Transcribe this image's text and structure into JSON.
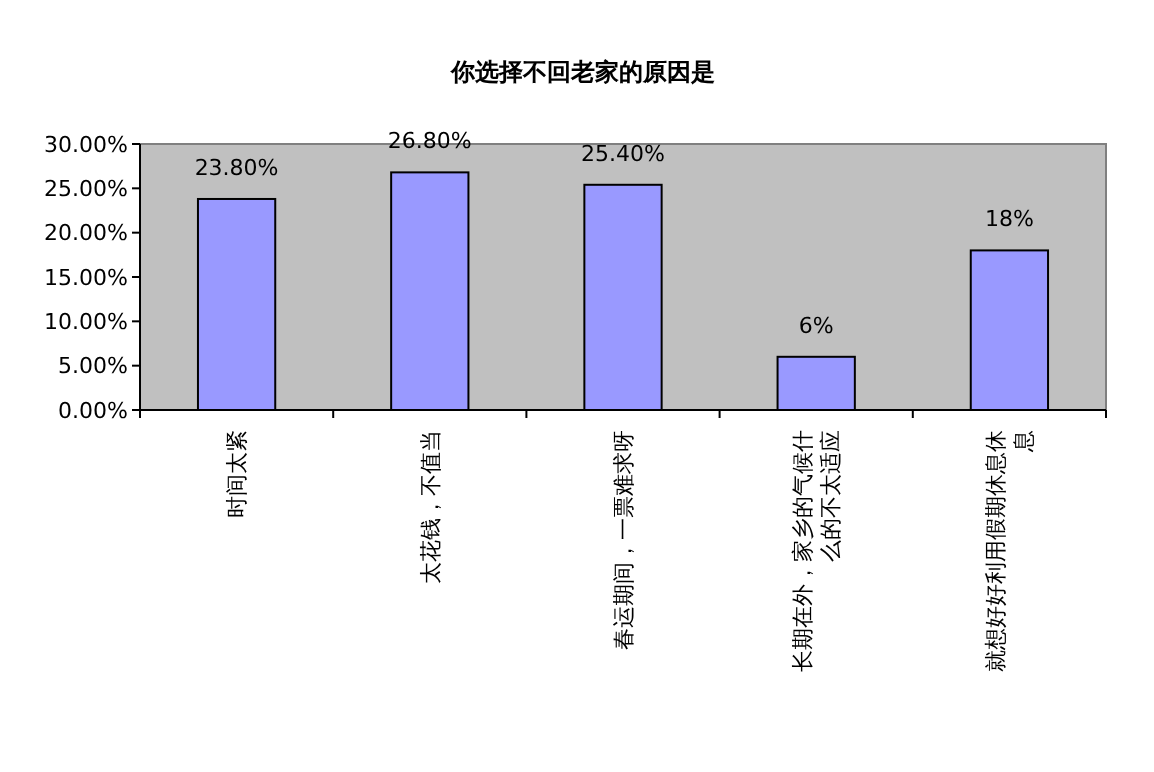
{
  "chart_data": {
    "type": "bar",
    "title": "你选择不回老家的原因是",
    "categories": [
      "时间太紧",
      "太花钱，不值当",
      "春运期间，一票难求呀",
      "长期在外，家乡的气候什么的不太适应",
      "就想好好利用假期休息休息"
    ],
    "values": [
      23.8,
      26.8,
      25.4,
      6,
      18
    ],
    "value_labels": [
      "23.80%",
      "26.80%",
      "25.40%",
      "6%",
      "18%"
    ],
    "color": "#9999ff",
    "ylim": [
      0,
      30
    ],
    "yticks": [
      {
        "value": 0,
        "label": "0.00%"
      },
      {
        "value": 5,
        "label": "5.00%"
      },
      {
        "value": 10,
        "label": "10.00%"
      },
      {
        "value": 15,
        "label": "15.00%"
      },
      {
        "value": 20,
        "label": "20.00%"
      },
      {
        "value": 25,
        "label": "25.00%"
      },
      {
        "value": 30,
        "label": "30.00%"
      }
    ],
    "grid": false
  }
}
